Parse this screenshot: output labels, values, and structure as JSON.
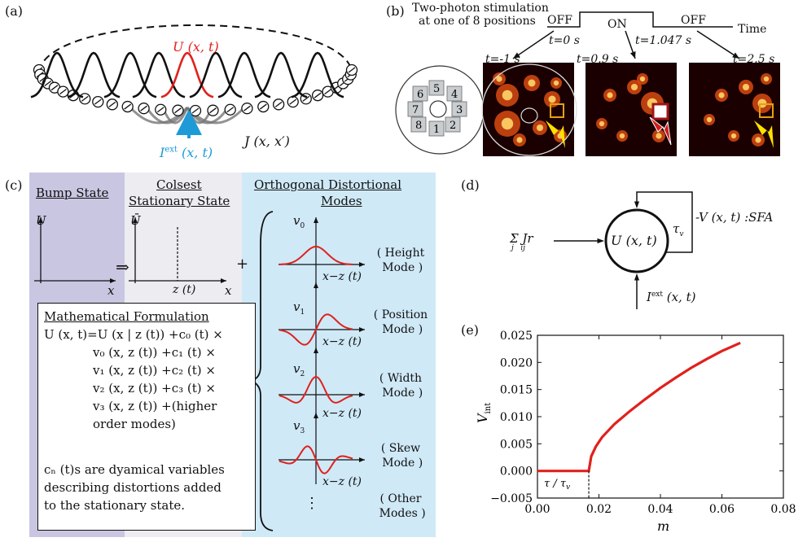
{
  "panel_labels": {
    "a": "(a)",
    "b": "(b)",
    "c": "(c)",
    "d": "(d)",
    "e": "(e)"
  },
  "panel_a": {
    "u_label": "U (x, t)",
    "iext_label": "I",
    "iext_sup": "ext",
    "iext_args": "(x, t)",
    "j_label": "J (x, x′)"
  },
  "panel_b": {
    "title_line1": "Two-photon stimulation",
    "title_line2": "at one of 8 positions",
    "off1": "OFF",
    "on": "ON",
    "off2": "OFF",
    "time": "Time",
    "t0": "t=0  s",
    "t1": "t=1.047  s",
    "img_labels": [
      "t=-1  s",
      "t=0.9  s",
      "t=2.5  s"
    ],
    "positions": [
      "5",
      "4",
      "3",
      "2",
      "1",
      "8",
      "7",
      "6"
    ]
  },
  "panel_c": {
    "bump_state": "Bump State",
    "closest_line1": "Colsest",
    "closest_line2": "Stationary State",
    "odm_line1": "Orthogonal Distortional",
    "odm_line2": "Modes",
    "u_axis": "U",
    "ubar_axis": "Ū",
    "x_axis": "x",
    "zt": "z (t)",
    "implies": "⇒",
    "plus": "+",
    "modes": [
      {
        "v": "v",
        "sub": "0",
        "name1": "Height",
        "name2": "Mode"
      },
      {
        "v": "v",
        "sub": "1",
        "name1": "Position",
        "name2": "Mode"
      },
      {
        "v": "v",
        "sub": "2",
        "name1": "Width",
        "name2": "Mode"
      },
      {
        "v": "v",
        "sub": "3",
        "name1": "Skew",
        "name2": "Mode"
      },
      {
        "v": "",
        "sub": "",
        "name1": "Other",
        "name2": "Modes"
      }
    ],
    "xz": "x−z (t)",
    "vdots": "⋮",
    "math_title": "Mathematical Formulation",
    "math_lines": [
      "U (x, t)=U (x | z (t)) +c₀ (t) ×",
      "v₀ (x, z (t)) +c₁ (t) ×",
      "v₁ (x, z (t)) +c₂ (t) ×",
      "v₂ (x, z (t)) +c₃ (t) ×",
      "v₃ (x, z (t)) +(higher",
      "order modes)"
    ],
    "note_lines": [
      "cₙ (t)s are dyamical variables",
      "describing distortions added",
      "to the stationary state."
    ]
  },
  "panel_d": {
    "sum": "Σ J",
    "sum_sub": "j   ij",
    "sum_r": "r",
    "node": "U (x, t)",
    "tau": "τ",
    "tau_sub": "v",
    "feedback": "-V (x, t) :SFA",
    "iext": "I",
    "iext_sup": "ext",
    "iext_args": "(x, t)"
  },
  "chart_data": {
    "type": "line",
    "xlabel": "m",
    "ylabel": "V",
    "ylabel_sub": "int",
    "xlim": [
      0.0,
      0.08
    ],
    "ylim": [
      -0.005,
      0.025
    ],
    "xticks": [
      "0.00",
      "0.02",
      "0.04",
      "0.06",
      "0.08"
    ],
    "yticks": [
      "−0.005",
      "0.000",
      "0.005",
      "0.010",
      "0.015",
      "0.020",
      "0.025"
    ],
    "annotation": "τ / τ",
    "annotation_sub": "v",
    "threshold": 0.0167,
    "color": "#e0211d",
    "series": [
      {
        "x": [
          0.0,
          0.0167,
          0.0175,
          0.019,
          0.021,
          0.025,
          0.03,
          0.035,
          0.04,
          0.045,
          0.05,
          0.055,
          0.06,
          0.066
        ],
        "y": [
          0.0,
          0.0,
          0.0027,
          0.0045,
          0.0062,
          0.0086,
          0.011,
          0.0132,
          0.0153,
          0.0172,
          0.019,
          0.0206,
          0.0221,
          0.0236
        ]
      }
    ]
  }
}
